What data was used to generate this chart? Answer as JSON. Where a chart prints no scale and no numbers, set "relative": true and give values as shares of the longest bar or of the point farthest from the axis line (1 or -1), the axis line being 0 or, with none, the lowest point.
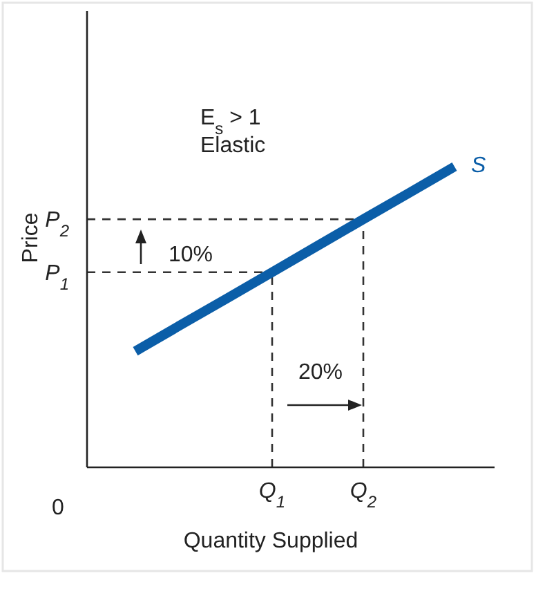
{
  "chart_data": {
    "type": "line",
    "relative": true,
    "xlabel": "Quantity Supplied",
    "ylabel": "Price",
    "categories": [
      null,
      null,
      null,
      "Q$_{1}$",
      null,
      "Q$_{2}$",
      null,
      null
    ],
    "series": [
      {
        "name": "S",
        "color": "#0b5ea8",
        "values": [
          0.386,
          0.474,
          0.561,
          0.649,
          0.737,
          0.825,
          0.912,
          1
        ]
      }
    ],
    "ref_lines": [
      {
        "axis": "y",
        "value": 0.649,
        "label": "P$_{1}$",
        "line_style": "dashed",
        "color": "#333333"
      },
      {
        "axis": "y",
        "value": 0.825,
        "label": "P$_{2}$",
        "line_style": "dashed",
        "color": "#333333"
      },
      {
        "axis": "x",
        "value": "Q$_{1}$",
        "line_style": "dashed",
        "color": "#333333"
      },
      {
        "axis": "x",
        "value": "Q$_{2}$",
        "line_style": "dashed",
        "color": "#333333"
      }
    ],
    "annotations": [
      "E$_{s}$ > 1",
      "Elastic",
      "10%",
      "20%",
      "0"
    ]
  }
}
